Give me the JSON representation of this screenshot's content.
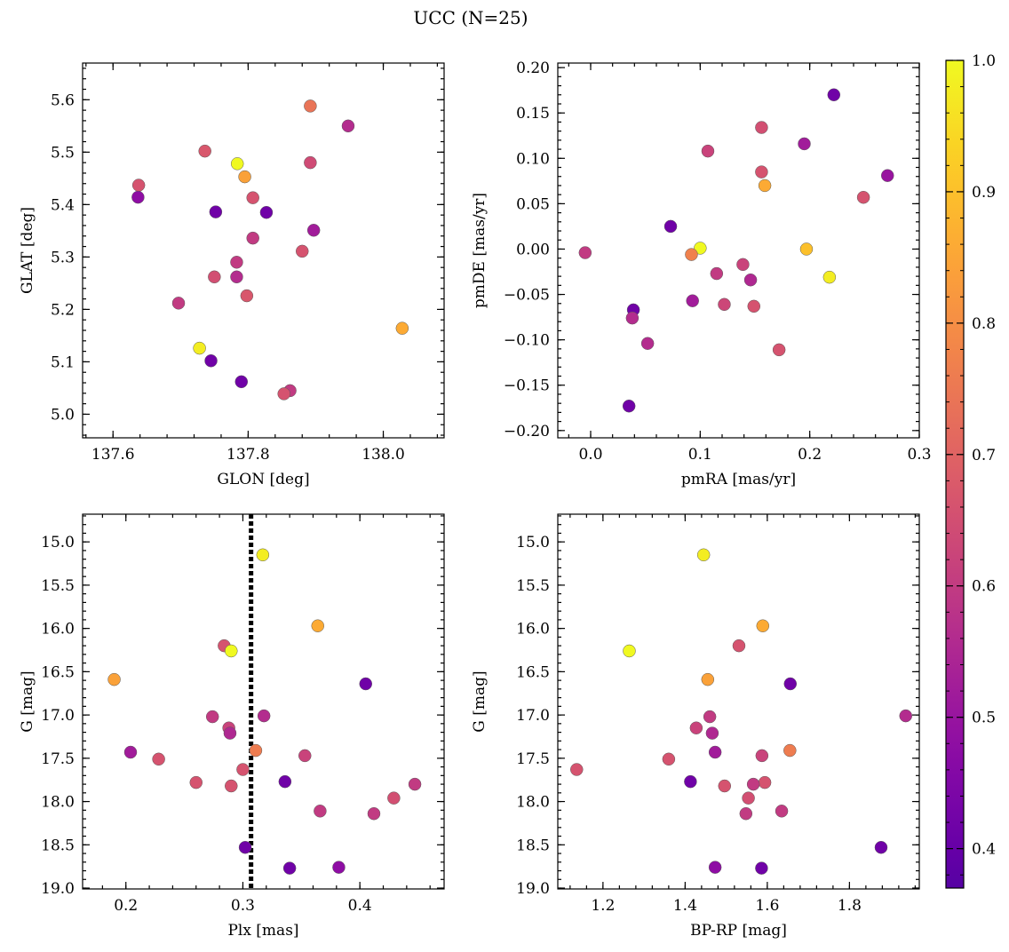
{
  "figure": {
    "title": "UCC (N=25)"
  },
  "colorbar": {
    "colormap": "plasma",
    "range": [
      0.37,
      1.0
    ],
    "ticks": [
      0.4,
      0.5,
      0.6,
      0.7,
      0.8,
      0.9,
      1.0
    ],
    "tick_labels": [
      "0.4",
      "0.5",
      "0.6",
      "0.7",
      "0.8",
      "0.9",
      "1.0"
    ]
  },
  "chart_data": [
    {
      "type": "scatter",
      "id": "glon-glat",
      "xlabel": "GLON [deg]",
      "ylabel": "GLAT [deg]",
      "xlim": [
        137.555,
        138.09
      ],
      "ylim": [
        4.955,
        5.67
      ],
      "xticks": [
        137.6,
        137.8,
        138.0
      ],
      "xtick_labels": [
        "137.6",
        "137.8",
        "138.0"
      ],
      "yticks": [
        5.0,
        5.1,
        5.2,
        5.3,
        5.4,
        5.5,
        5.6
      ],
      "ytick_labels": [
        "5.0",
        "5.1",
        "5.2",
        "5.3",
        "5.4",
        "5.5",
        "5.6"
      ],
      "x": [
        137.892,
        137.948,
        137.736,
        137.892,
        137.638,
        137.784,
        137.795,
        137.637,
        137.807,
        137.752,
        137.827,
        137.897,
        137.807,
        137.88,
        137.783,
        137.75,
        137.783,
        137.798,
        137.697,
        137.728,
        138.028,
        137.745,
        137.79,
        137.862,
        137.853
      ],
      "y": [
        5.588,
        5.55,
        5.502,
        5.48,
        5.437,
        5.478,
        5.453,
        5.414,
        5.413,
        5.386,
        5.385,
        5.351,
        5.336,
        5.311,
        5.29,
        5.262,
        5.262,
        5.226,
        5.212,
        5.126,
        5.164,
        5.102,
        5.062,
        5.045,
        5.039
      ],
      "c": [
        0.74,
        0.56,
        0.67,
        0.64,
        0.66,
        1.0,
        0.84,
        0.48,
        0.66,
        0.42,
        0.42,
        0.52,
        0.6,
        0.66,
        0.6,
        0.65,
        0.56,
        0.67,
        0.6,
        0.98,
        0.86,
        0.42,
        0.42,
        0.6,
        0.66
      ]
    },
    {
      "type": "scatter",
      "id": "pmra-pmde",
      "xlabel": "pmRA [mas/yr]",
      "ylabel": "pmDE [mas/yr]",
      "xlim": [
        -0.03,
        0.3
      ],
      "ylim": [
        -0.208,
        0.205
      ],
      "xticks": [
        0.0,
        0.1,
        0.2,
        0.3
      ],
      "xtick_labels": [
        "0.0",
        "0.1",
        "0.2",
        "0.3"
      ],
      "yticks": [
        -0.2,
        -0.15,
        -0.1,
        -0.05,
        0.0,
        0.05,
        0.1,
        0.15,
        0.2
      ],
      "ytick_labels": [
        "−0.20",
        "−0.15",
        "−0.10",
        "−0.05",
        "0.00",
        "0.05",
        "0.10",
        "0.15",
        "0.20"
      ],
      "x": [
        0.222,
        0.156,
        0.107,
        0.195,
        0.156,
        0.271,
        0.159,
        0.249,
        0.073,
        0.1,
        0.197,
        0.092,
        -0.005,
        0.218,
        0.115,
        0.139,
        0.146,
        0.093,
        0.122,
        0.149,
        0.039,
        0.038,
        0.052,
        0.172,
        0.035
      ],
      "y": [
        0.17,
        0.134,
        0.108,
        0.116,
        0.085,
        0.081,
        0.07,
        0.057,
        0.025,
        0.001,
        0.0,
        -0.006,
        -0.004,
        -0.031,
        -0.027,
        -0.017,
        -0.034,
        -0.057,
        -0.061,
        -0.063,
        -0.067,
        -0.076,
        -0.104,
        -0.111,
        -0.173
      ],
      "c": [
        0.42,
        0.65,
        0.62,
        0.52,
        0.66,
        0.5,
        0.86,
        0.66,
        0.42,
        1.0,
        0.9,
        0.77,
        0.6,
        0.98,
        0.6,
        0.62,
        0.55,
        0.52,
        0.63,
        0.66,
        0.42,
        0.56,
        0.56,
        0.66,
        0.42
      ]
    },
    {
      "type": "scatter",
      "id": "plx-g",
      "xlabel": "Plx [mas]",
      "ylabel": "G [mag]",
      "y_inverted": true,
      "xlim": [
        0.163,
        0.472
      ],
      "ylim": [
        19.01,
        14.68
      ],
      "vline": 0.307,
      "xticks": [
        0.2,
        0.3,
        0.4
      ],
      "xtick_labels": [
        "0.2",
        "0.3",
        "0.4"
      ],
      "yticks": [
        15.0,
        15.5,
        16.0,
        16.5,
        17.0,
        17.5,
        18.0,
        18.5,
        19.0
      ],
      "ytick_labels": [
        "15.0",
        "15.5",
        "16.0",
        "16.5",
        "17.0",
        "17.5",
        "18.0",
        "18.5",
        "19.0"
      ],
      "x": [
        0.317,
        0.364,
        0.284,
        0.29,
        0.19,
        0.405,
        0.274,
        0.288,
        0.318,
        0.289,
        0.204,
        0.228,
        0.26,
        0.353,
        0.3,
        0.311,
        0.336,
        0.29,
        0.447,
        0.429,
        0.366,
        0.412,
        0.302,
        0.34,
        0.382
      ],
      "y": [
        15.15,
        15.97,
        16.2,
        16.26,
        16.59,
        16.64,
        17.02,
        17.15,
        17.01,
        17.21,
        17.43,
        17.51,
        17.78,
        17.47,
        17.63,
        17.41,
        17.77,
        17.82,
        17.8,
        17.96,
        18.11,
        18.14,
        18.53,
        18.77,
        18.76
      ],
      "c": [
        0.98,
        0.86,
        0.66,
        1.0,
        0.84,
        0.42,
        0.6,
        0.62,
        0.56,
        0.55,
        0.52,
        0.66,
        0.66,
        0.62,
        0.66,
        0.76,
        0.42,
        0.66,
        0.6,
        0.65,
        0.6,
        0.6,
        0.42,
        0.42,
        0.48
      ]
    },
    {
      "type": "scatter",
      "id": "bprp-g",
      "xlabel": "BP-RP [mag]",
      "ylabel": "G [mag]",
      "y_inverted": true,
      "xlim": [
        1.09,
        1.97
      ],
      "ylim": [
        19.01,
        14.68
      ],
      "xticks": [
        1.2,
        1.4,
        1.6,
        1.8
      ],
      "xtick_labels": [
        "1.2",
        "1.4",
        "1.6",
        "1.8"
      ],
      "yticks": [
        15.0,
        15.5,
        16.0,
        16.5,
        17.0,
        17.5,
        18.0,
        18.5,
        19.0
      ],
      "ytick_labels": [
        "15.0",
        "15.5",
        "16.0",
        "16.5",
        "17.0",
        "17.5",
        "18.0",
        "18.5",
        "19.0"
      ],
      "x": [
        1.445,
        1.264,
        1.589,
        1.531,
        1.455,
        1.656,
        1.937,
        1.46,
        1.427,
        1.466,
        1.473,
        1.136,
        1.36,
        1.587,
        1.655,
        1.413,
        1.496,
        1.594,
        1.566,
        1.554,
        1.548,
        1.635,
        1.877,
        1.473,
        1.586
      ],
      "y": [
        15.15,
        16.26,
        15.97,
        16.2,
        16.59,
        16.64,
        17.01,
        17.02,
        17.15,
        17.21,
        17.43,
        17.63,
        17.51,
        17.47,
        17.41,
        17.77,
        17.82,
        17.78,
        17.8,
        17.96,
        18.14,
        18.11,
        18.53,
        18.76,
        18.77
      ],
      "c": [
        0.98,
        1.0,
        0.86,
        0.66,
        0.84,
        0.42,
        0.56,
        0.6,
        0.62,
        0.55,
        0.52,
        0.66,
        0.66,
        0.62,
        0.76,
        0.42,
        0.66,
        0.66,
        0.6,
        0.65,
        0.6,
        0.6,
        0.42,
        0.48,
        0.42
      ]
    }
  ]
}
